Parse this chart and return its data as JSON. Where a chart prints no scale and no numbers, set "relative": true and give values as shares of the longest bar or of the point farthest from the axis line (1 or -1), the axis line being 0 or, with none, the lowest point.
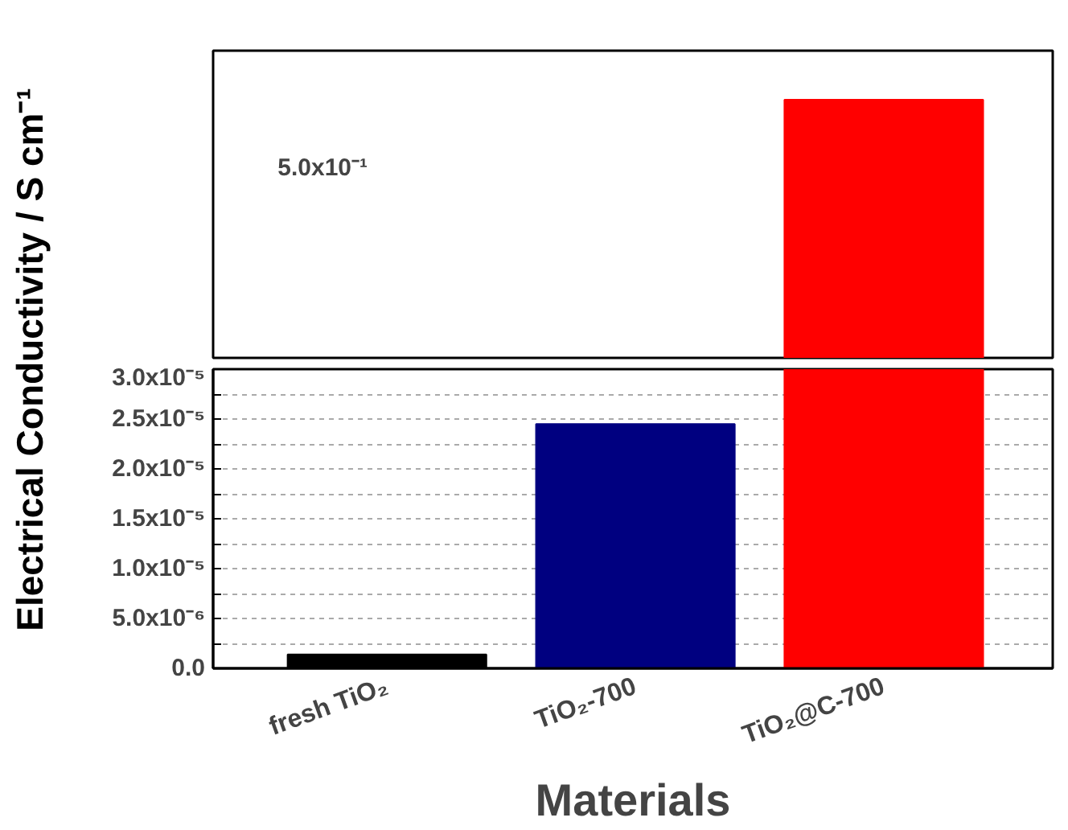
{
  "chart_data": [
    {
      "type": "bar",
      "categories": [
        null,
        null,
        null
      ],
      "values": [
        null,
        null,
        1
      ],
      "colors": [
        "#000000",
        "#000080",
        "#ff0000"
      ],
      "relative": true,
      "annotations": [
        "5.0x10⁻¹"
      ],
      "ylabel": "Electrical Conductivity / S cm⁻¹"
    },
    {
      "type": "bar",
      "categories": [
        "fresh TiO₂",
        "TiO₂-700",
        "TiO₂@C-700"
      ],
      "values": [
        1.4e-06,
        2.45e-05,
        3e-05
      ],
      "colors": [
        "#000000",
        "#000080",
        "#ff0000"
      ],
      "ylim": [
        0,
        3e-05
      ],
      "yticks": [
        {
          "value": 0,
          "label": "0.0"
        },
        {
          "value": 2.5e-06,
          "label": null
        },
        {
          "value": 5e-06,
          "label": "5.0x10⁻⁶"
        },
        {
          "value": 7.5e-06,
          "label": null
        },
        {
          "value": 1e-05,
          "label": "1.0x10⁻⁵"
        },
        {
          "value": 1.25e-05,
          "label": null
        },
        {
          "value": 1.5e-05,
          "label": "1.5x10⁻⁵"
        },
        {
          "value": 1.75e-05,
          "label": null
        },
        {
          "value": 2e-05,
          "label": "2.0x10⁻⁵"
        },
        {
          "value": 2.25e-05,
          "label": null
        },
        {
          "value": 2.5e-05,
          "label": "2.5x10⁻⁵"
        },
        {
          "value": 2.75e-05,
          "label": null
        },
        {
          "value": 3e-05,
          "label": "3.0x10⁻⁵"
        }
      ],
      "grid": "y",
      "xlabel": "Materials"
    }
  ]
}
